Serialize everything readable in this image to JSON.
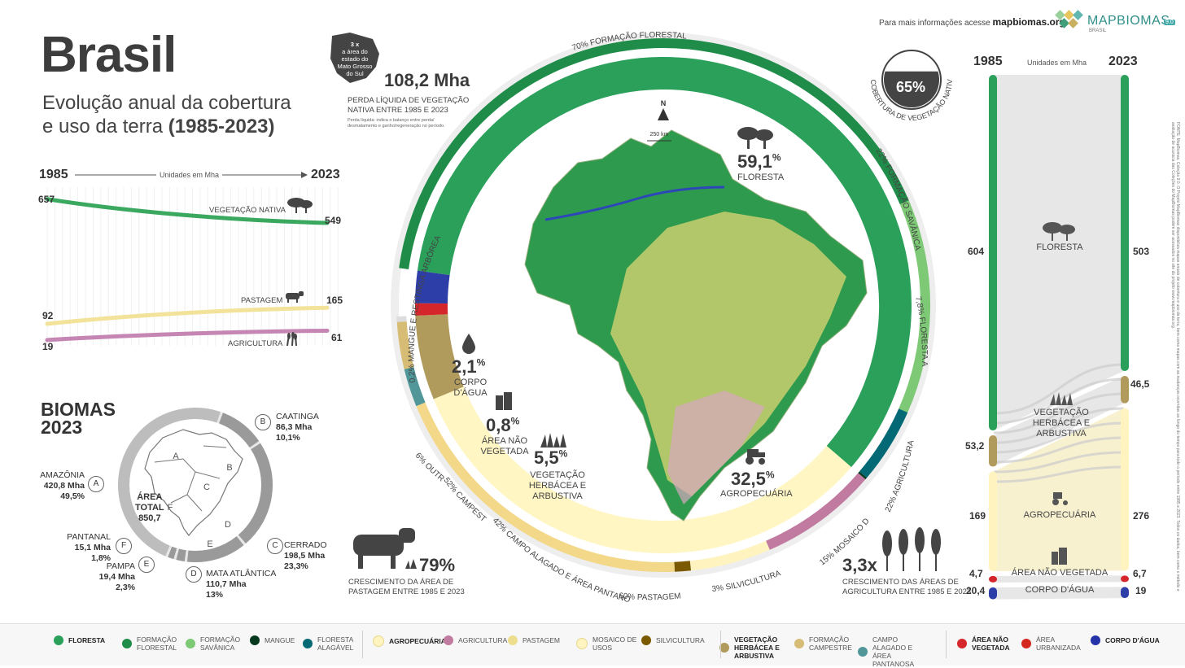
{
  "header": {
    "title": "Brasil",
    "subtitle_line1": "Evolução anual da cobertura",
    "subtitle_line2_prefix": "e uso da terra ",
    "subtitle_line2_years": "(1985-2023)",
    "info_prefix": "Para mais informações acesse",
    "info_site": "mapbiomas.org",
    "logo_text": "MAPBIOMAS",
    "logo_sub": "BRASIL",
    "logo_badge": "9.0"
  },
  "colors": {
    "floresta": "#2aa05a",
    "formacao_florestal": "#1f8d49",
    "formacao_savanica": "#7dc975",
    "mangue": "#04381d",
    "floresta_alagavel": "#026975",
    "agropecuaria": "#fff3bf",
    "agricultura": "#c27ba0",
    "pastagem": "#edde8e",
    "mosaico": "#fff3bf",
    "silvicultura": "#7a5900",
    "veg_herbacea": "#b09a5c",
    "formacao_campestre": "#d6bc74",
    "campo_alagado": "#519799",
    "area_nao_vegetada": "#d5272b",
    "area_urbanizada": "#d4271e",
    "agua": "#2532a8"
  },
  "line_chart": {
    "start_year": "1985",
    "end_year": "2023",
    "units": "Unidades em Mha",
    "series": [
      {
        "name": "VEGETAÇÃO NATIVA",
        "start": 657,
        "end": 549,
        "color": "#3aa85f",
        "icon": "tree-icon"
      },
      {
        "name": "PASTAGEM",
        "start": 92,
        "end": 165,
        "color": "#f3e39a",
        "icon": "cow-icon"
      },
      {
        "name": "AGRICULTURA",
        "start": 19,
        "end": 61,
        "color": "#c586b4",
        "icon": "wheat-icon"
      }
    ]
  },
  "biomas": {
    "title_line1": "BIOMAS",
    "title_line2": "2023",
    "total_label_1": "ÁREA",
    "total_label_2": "TOTAL",
    "total_value": "850,7",
    "items": [
      {
        "letter": "A",
        "name": "AMAZÔNIA",
        "area": "420,8 Mha",
        "pct": "49,5%"
      },
      {
        "letter": "B",
        "name": "CAATINGA",
        "area": "86,3 Mha",
        "pct": "10,1%"
      },
      {
        "letter": "C",
        "name": "CERRADO",
        "area": "198,5 Mha",
        "pct": "23,3%"
      },
      {
        "letter": "D",
        "name": "MATA ATLÂNTICA",
        "area": "110,7 Mha",
        "pct": "13%"
      },
      {
        "letter": "E",
        "name": "PAMPA",
        "area": "19,4 Mha",
        "pct": "2,3%"
      },
      {
        "letter": "F",
        "name": "PANTANAL",
        "area": "15,1 Mha",
        "pct": "1,8%"
      }
    ]
  },
  "loss": {
    "value": "108,2 Mha",
    "label_line1": "PERDA LÍQUIDA DE VEGETAÇÃO",
    "label_line2": "NATIVA ENTRE 1985 E 2023",
    "note_line1": "Perda líquida: indica o balanço entre perda/",
    "note_line2": "desmatamento e ganho/regeneração no período.",
    "ms_line1": "3 x",
    "ms_line2": "a área do",
    "ms_line3": "estado do",
    "ms_line4": "Mato Grosso",
    "ms_line5": "do Sul"
  },
  "donut": {
    "sectors": [
      {
        "label": "FLORESTA",
        "value": 59.1,
        "color": "#2aa05a"
      },
      {
        "label": "AGROPECUÁRIA",
        "value": 32.5,
        "color": "#fff6c4"
      },
      {
        "label": "VEGETAÇÃO HERBÁCEA E ARBUSTIVA",
        "value": 5.5,
        "color": "#b09a5c"
      },
      {
        "label": "ÁREA NÃO VEGETADA",
        "value": 0.8,
        "color": "#d5272b"
      },
      {
        "label": "CORPO D'ÁGUA",
        "value": 2.1,
        "color": "#2e3ea8"
      }
    ],
    "sub_labels": [
      "70% FORMAÇÃO FLORESTAL",
      "22% FORMAÇÃO SAVÂNICA",
      "7,8% FLORESTA ALAGÁVEL",
      "0,2% MANGUE E RESTINGA ARBÓREA",
      "22% AGRICULTURA",
      "15% MOSAICO DE USOS",
      "3% SILVICULTURA",
      "60% PASTAGEM",
      "42% CAMPO ALAGADO E ÁREA PANTANOSA",
      "52% CAMPESTRE",
      "6% OUTROS"
    ],
    "pct_floresta": "59,1",
    "pct_agro": "32,5",
    "pct_veg": "5,5",
    "pct_nao_veg": "0,8",
    "pct_agua": "2,1",
    "lbl_floresta": "FLORESTA",
    "lbl_agro": "AGROPECUÁRIA",
    "lbl_veg_1": "VEGETAÇÃO",
    "lbl_veg_2": "HERBÁCEA E",
    "lbl_veg_3": "ARBUSTIVA",
    "lbl_nao_veg_1": "ÁREA NÃO",
    "lbl_nao_veg_2": "VEGETADA",
    "lbl_agua_1": "CORPO",
    "lbl_agua_2": "D'ÁGUA",
    "scale": "250 km",
    "north": "N"
  },
  "native_cover": {
    "value": "65%",
    "label": "COBERTURA DE VEGETAÇÃO NATIVA"
  },
  "pasture_growth": {
    "value": "79%",
    "label_line1": "CRESCIMENTO DA ÁREA DE",
    "label_line2": "PASTAGEM ENTRE 1985 E 2023"
  },
  "agri_growth": {
    "value": "3,3x",
    "label_line1": "CRESCIMENTO DAS ÁREAS DE",
    "label_line2": "AGRICULTURA ENTRE 1985 E 2023"
  },
  "sankey": {
    "start_year": "1985",
    "end_year": "2023",
    "units": "Unidades em Mha",
    "classes": [
      {
        "name": "FLORESTA",
        "v1985": "604",
        "v2023": "503",
        "color": "#2aa05a"
      },
      {
        "name": "VEGETAÇÃO HERBÁCEA E ARBUSTIVA",
        "v1985": "53,2",
        "v2023": "46,5",
        "color": "#b09a5c"
      },
      {
        "name": "AGROPECUÁRIA",
        "v1985": "169",
        "v2023": "276",
        "color": "#fff3bf"
      },
      {
        "name": "ÁREA NÃO VEGETADA",
        "v1985": "4,7",
        "v2023": "6,7",
        "color": "#d5272b"
      },
      {
        "name": "CORPO D'ÁGUA",
        "v1985": "20,4",
        "v2023": "19",
        "color": "#2e3ea8"
      }
    ]
  },
  "source_note": "FONTE: MapBiomas, Coleção 9.0. O Projeto MapBiomas disponibiliza mapas anuais de cobertura e uso da terra, bem como mapas com as mudanças ocorridas ao longo do tempo para todo o período entre 1985 e 2023. Todos os dados, bem como o método e avaliação de acurácia das Coleções do MapBiomas podem ser acessados no site do projeto www.mapbiomas.org.",
  "legend": [
    {
      "label": "FLORESTA",
      "color": "#2aa05a",
      "bold": true
    },
    {
      "label": "FORMAÇÃO FLORESTAL",
      "color": "#1f8d49",
      "bold": false
    },
    {
      "label": "FORMAÇÃO SAVÂNICA",
      "color": "#7dc975",
      "bold": false
    },
    {
      "label": "MANGUE",
      "color": "#04381d",
      "bold": false
    },
    {
      "label": "FLORESTA ALAGÁVEL",
      "color": "#026975",
      "bold": false
    },
    {
      "label": "AGROPECUÁRIA",
      "color": "#fff3bf",
      "bold": true
    },
    {
      "label": "AGRICULTURA",
      "color": "#c27ba0",
      "bold": false
    },
    {
      "label": "PASTAGEM",
      "color": "#edde8e",
      "bold": false
    },
    {
      "label": "MOSAICO DE USOS",
      "color": "#fff3bf",
      "bold": false
    },
    {
      "label": "SILVICULTURA",
      "color": "#7a5900",
      "bold": false
    },
    {
      "label": "VEGETAÇÃO HERBÁCEA E ARBUSTIVA",
      "color": "#b09a5c",
      "bold": true
    },
    {
      "label": "FORMAÇÃO CAMPESTRE",
      "color": "#d6bc74",
      "bold": false
    },
    {
      "label": "CAMPO ALAGADO E ÁREA PANTANOSA",
      "color": "#519799",
      "bold": false
    },
    {
      "label": "ÁREA NÃO VEGETADA",
      "color": "#d5272b",
      "bold": true
    },
    {
      "label": "ÁREA URBANIZADA",
      "color": "#d4271e",
      "bold": false
    },
    {
      "label": "CORPO D'ÁGUA",
      "color": "#2532a8",
      "bold": true
    }
  ],
  "chart_data": [
    {
      "type": "line",
      "title": "",
      "x": [
        "1985",
        "2023"
      ],
      "xlabel": "Unidades em Mha",
      "series": [
        {
          "name": "VEGETAÇÃO NATIVA",
          "values": [
            657,
            549
          ]
        },
        {
          "name": "PASTAGEM",
          "values": [
            92,
            165
          ]
        },
        {
          "name": "AGRICULTURA",
          "values": [
            19,
            61
          ]
        }
      ]
    },
    {
      "type": "pie",
      "title": "",
      "categories": [
        "FLORESTA",
        "AGROPECUÁRIA",
        "VEGETAÇÃO HERBÁCEA E ARBUSTIVA",
        "ÁREA NÃO VEGETADA",
        "CORPO D'ÁGUA"
      ],
      "values": [
        59.1,
        32.5,
        5.5,
        0.8,
        2.1
      ]
    },
    {
      "type": "bar",
      "title": "",
      "categories": [
        "FLORESTA",
        "VEGETAÇÃO HERBÁCEA E ARBUSTIVA",
        "AGROPECUÁRIA",
        "ÁREA NÃO VEGETADA",
        "CORPO D'ÁGUA"
      ],
      "series": [
        {
          "name": "1985",
          "values": [
            604,
            53.2,
            169,
            4.7,
            20.4
          ]
        },
        {
          "name": "2023",
          "values": [
            503,
            46.5,
            276,
            6.7,
            19
          ]
        }
      ]
    }
  ]
}
